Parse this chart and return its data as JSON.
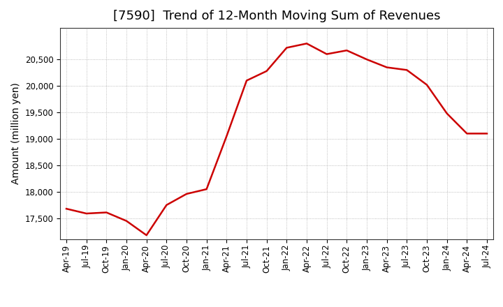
{
  "title": "[7590]  Trend of 12-Month Moving Sum of Revenues",
  "ylabel": "Amount (million yen)",
  "line_color": "#CC0000",
  "line_width": 1.8,
  "background_color": "#FFFFFF",
  "plot_bg_color": "#FFFFFF",
  "grid_color": "#AAAAAA",
  "values": [
    17680,
    17590,
    17610,
    17450,
    17180,
    17750,
    17960,
    18050,
    19050,
    20100,
    20280,
    20720,
    20800,
    20600,
    20670,
    20500,
    20350,
    20300,
    20020,
    19480,
    19100,
    19100
  ],
  "yticks": [
    17500,
    18000,
    18500,
    19000,
    19500,
    20000,
    20500
  ],
  "ylim": [
    17100,
    21100
  ],
  "xtick_labels": [
    "Apr-19",
    "Jul-19",
    "Oct-19",
    "Jan-20",
    "Apr-20",
    "Jul-20",
    "Oct-20",
    "Jan-21",
    "Apr-21",
    "Jul-21",
    "Oct-21",
    "Jan-22",
    "Apr-22",
    "Jul-22",
    "Oct-22",
    "Jan-23",
    "Apr-23",
    "Jul-23",
    "Oct-23",
    "Jan-24",
    "Apr-24",
    "Jul-24"
  ],
  "title_fontsize": 13,
  "label_fontsize": 10,
  "tick_fontsize": 8.5
}
